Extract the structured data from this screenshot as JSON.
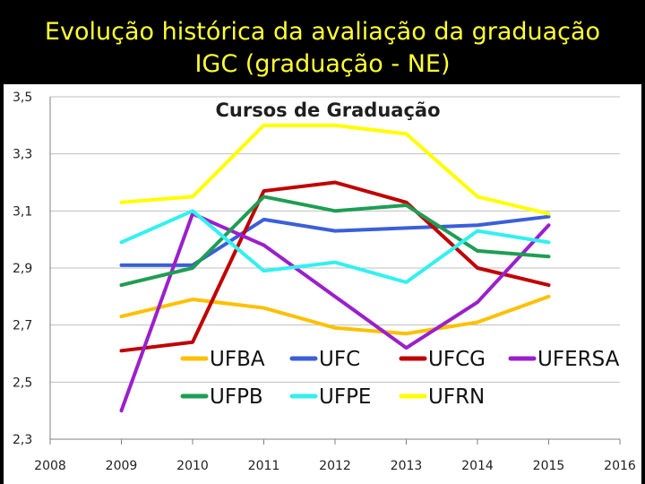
{
  "slide": {
    "title_line1": "Evolução histórica da avaliação da graduação",
    "title_line2": "IGC  (graduação - NE)",
    "title_color": "#FFFF33",
    "background": "#000000"
  },
  "chart_data": {
    "type": "line",
    "title": "Cursos de Graduação",
    "xlabel": "",
    "ylabel": "",
    "x": [
      2009,
      2010,
      2011,
      2012,
      2013,
      2014,
      2015
    ],
    "x_ticks": [
      "2008",
      "2009",
      "2010",
      "2011",
      "2012",
      "2013",
      "2014",
      "2015",
      "2016"
    ],
    "xlim": [
      2008,
      2016
    ],
    "y_ticks": [
      "2,3",
      "2,5",
      "2,7",
      "2,9",
      "3,1",
      "3,3",
      "3,5"
    ],
    "ylim": [
      2.3,
      3.5
    ],
    "grid": "horizontal",
    "legend_position": "inside-bottom",
    "series": [
      {
        "name": "UFBA",
        "color": "#FFC000",
        "values": [
          2.73,
          2.79,
          2.76,
          2.69,
          2.67,
          2.71,
          2.8
        ]
      },
      {
        "name": "UFC",
        "color": "#3A5FD9",
        "values": [
          2.91,
          2.91,
          3.07,
          3.03,
          3.04,
          3.05,
          3.08
        ]
      },
      {
        "name": "UFCG",
        "color": "#C00000",
        "values": [
          2.61,
          2.64,
          3.17,
          3.2,
          3.13,
          2.9,
          2.84
        ]
      },
      {
        "name": "UFERSA",
        "color": "#9B1FCB",
        "values": [
          2.4,
          3.09,
          2.98,
          2.8,
          2.62,
          2.78,
          3.05
        ]
      },
      {
        "name": "UFPB",
        "color": "#1E9E53",
        "values": [
          2.84,
          2.9,
          3.15,
          3.1,
          3.12,
          2.96,
          2.94
        ]
      },
      {
        "name": "UFPE",
        "color": "#33F0F0",
        "values": [
          2.99,
          3.1,
          2.89,
          2.92,
          2.85,
          3.03,
          2.99
        ]
      },
      {
        "name": "UFRN",
        "color": "#FFFF00",
        "values": [
          3.13,
          3.15,
          3.4,
          3.4,
          3.37,
          3.15,
          3.09
        ]
      }
    ]
  }
}
